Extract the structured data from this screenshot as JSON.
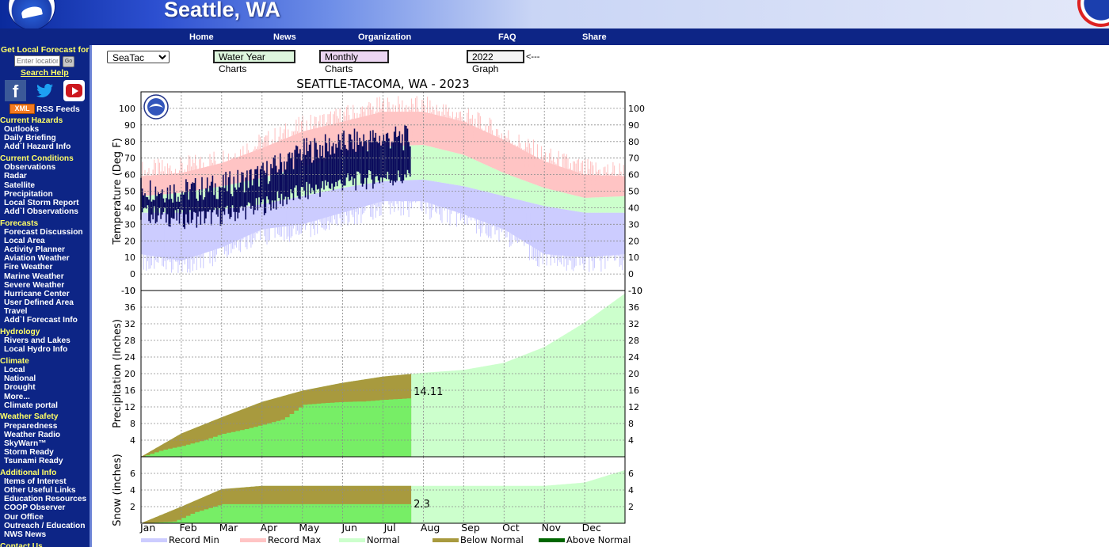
{
  "header": {
    "site_title": "Seattle, WA",
    "nav": [
      "Home",
      "News",
      "Organization",
      "FAQ",
      "Share"
    ]
  },
  "sidebar": {
    "forecast_label": "Get Local Forecast for:",
    "location_placeholder": "Enter location",
    "go_label": "Go",
    "search_help": "Search Help",
    "social": [
      "facebook-icon",
      "twitter-icon",
      "youtube-icon"
    ],
    "xml_label": "XML",
    "rss_label": "RSS Feeds",
    "sections": [
      {
        "heading": "Current Hazards",
        "items": [
          "Outlooks",
          "Daily Briefing",
          "Add`l Hazard Info"
        ]
      },
      {
        "heading": "Current Conditions",
        "items": [
          "Observations",
          "Radar",
          "Satellite",
          "Precipitation",
          "Local Storm Report",
          "Add`l Observations"
        ]
      },
      {
        "heading": "Forecasts",
        "items": [
          "Forecast Discussion",
          "Local Area",
          "Activity Planner",
          "Aviation Weather",
          "Fire Weather",
          "Marine Weather",
          "Severe Weather",
          "Hurricane Center",
          "User Defined Area",
          "Travel",
          "Add`l Forecast Info"
        ]
      },
      {
        "heading": "Hydrology",
        "items": [
          "Rivers and Lakes",
          "Local Hydro Info"
        ]
      },
      {
        "heading": "Climate",
        "items": [
          "Local",
          "National",
          "Drought",
          "More...",
          "Climate portal"
        ]
      },
      {
        "heading": "Weather Safety",
        "items": [
          "Preparedness",
          "Weather Radio",
          "SkyWarn™",
          "Storm Ready",
          "Tsunami Ready"
        ]
      },
      {
        "heading": "Additional Info",
        "items": [
          "Items of Interest",
          "Other Useful Links",
          "Education Resources",
          "COOP Observer",
          "Our Office",
          "Outreach / Education",
          "NWS News"
        ]
      },
      {
        "heading": "Contact Us",
        "items": []
      }
    ]
  },
  "controls": {
    "station_selected": "SeaTac",
    "water_year_label": "Water Year Charts",
    "monthly_label": "Monthly Charts",
    "graph_label": "2022 Graph",
    "arrow_text": "<---"
  },
  "chart_data": {
    "type": "area",
    "title": "SEATTLE-TACOMA, WA - 2023",
    "x_tick_labels": [
      "Jan",
      "Feb",
      "Mar",
      "Apr",
      "May",
      "Jun",
      "Jul",
      "Aug",
      "Sep",
      "Oct",
      "Nov",
      "Dec"
    ],
    "data_end_month": 6.7,
    "grid": true,
    "legend_position": "bottom",
    "legend": [
      {
        "label": "Record Min",
        "color": "#ccccff"
      },
      {
        "label": "Record Max",
        "color": "#ffc4c4"
      },
      {
        "label": "Normal",
        "color": "#ccffcc"
      },
      {
        "label": "Below Normal",
        "color": "#a89a3e"
      },
      {
        "label": "Above Normal",
        "color": "#006600"
      }
    ],
    "panels": [
      {
        "name": "temperature",
        "ylabel": "Temperature (Deg F)",
        "ylim": [
          -10,
          110
        ],
        "yticks": [
          -10,
          0,
          10,
          20,
          30,
          40,
          50,
          60,
          70,
          80,
          90,
          100
        ],
        "x_month": [
          0,
          1,
          2,
          3,
          4,
          5,
          6,
          7,
          8,
          9,
          10,
          11,
          12
        ],
        "record_max": [
          59,
          61,
          67,
          76,
          86,
          92,
          98,
          98,
          92,
          81,
          68,
          60,
          59
        ],
        "normal_high": [
          47,
          49,
          53,
          58,
          65,
          71,
          77,
          78,
          72,
          61,
          52,
          46,
          47
        ],
        "normal_low": [
          37,
          37,
          39,
          42,
          47,
          52,
          56,
          57,
          53,
          47,
          41,
          37,
          37
        ],
        "record_min": [
          12,
          8,
          16,
          27,
          30,
          37,
          44,
          44,
          36,
          27,
          12,
          10,
          12
        ],
        "observed_high": [
          52,
          50,
          53,
          60,
          74,
          79,
          82
        ],
        "observed_low": [
          37,
          33,
          35,
          41,
          49,
          55,
          58
        ]
      },
      {
        "name": "precipitation",
        "ylabel": "Precipitation (Inches)",
        "ylim": [
          0,
          40
        ],
        "yticks": [
          4,
          8,
          12,
          16,
          20,
          24,
          28,
          32,
          36
        ],
        "x_month": [
          0,
          1,
          2,
          3,
          4,
          5,
          6,
          7,
          8,
          9,
          10,
          11,
          12
        ],
        "normal_cumulative": [
          0,
          5.6,
          9.5,
          13.2,
          15.9,
          17.8,
          19.3,
          20.2,
          20.9,
          22.6,
          26.4,
          32.3,
          39.3
        ],
        "observed_month": [
          0,
          0.5,
          1,
          1.5,
          2,
          2.5,
          3,
          3.5,
          4,
          4.5,
          5,
          5.5,
          6,
          6.7
        ],
        "observed_cumulative": [
          0,
          1.6,
          2.6,
          3.9,
          5.5,
          6.5,
          7.7,
          9.0,
          12.5,
          12.9,
          13.2,
          13.3,
          13.7,
          14.11
        ],
        "annotation": "14.11"
      },
      {
        "name": "snow",
        "ylabel": "Snow (inches)",
        "ylim": [
          0,
          8
        ],
        "yticks": [
          2,
          4,
          6
        ],
        "x_month": [
          0,
          1,
          2,
          3,
          4,
          5,
          6,
          7,
          8,
          9,
          10,
          11,
          12
        ],
        "normal_cumulative": [
          0,
          2.0,
          4.1,
          4.5,
          4.5,
          4.5,
          4.5,
          4.5,
          4.5,
          4.5,
          4.5,
          4.9,
          6.4
        ],
        "observed_month": [
          0,
          0.8,
          1.3,
          2,
          6.7
        ],
        "observed_cumulative": [
          0,
          0.2,
          1.3,
          2.3,
          2.3
        ],
        "annotation": "2.3"
      }
    ]
  }
}
